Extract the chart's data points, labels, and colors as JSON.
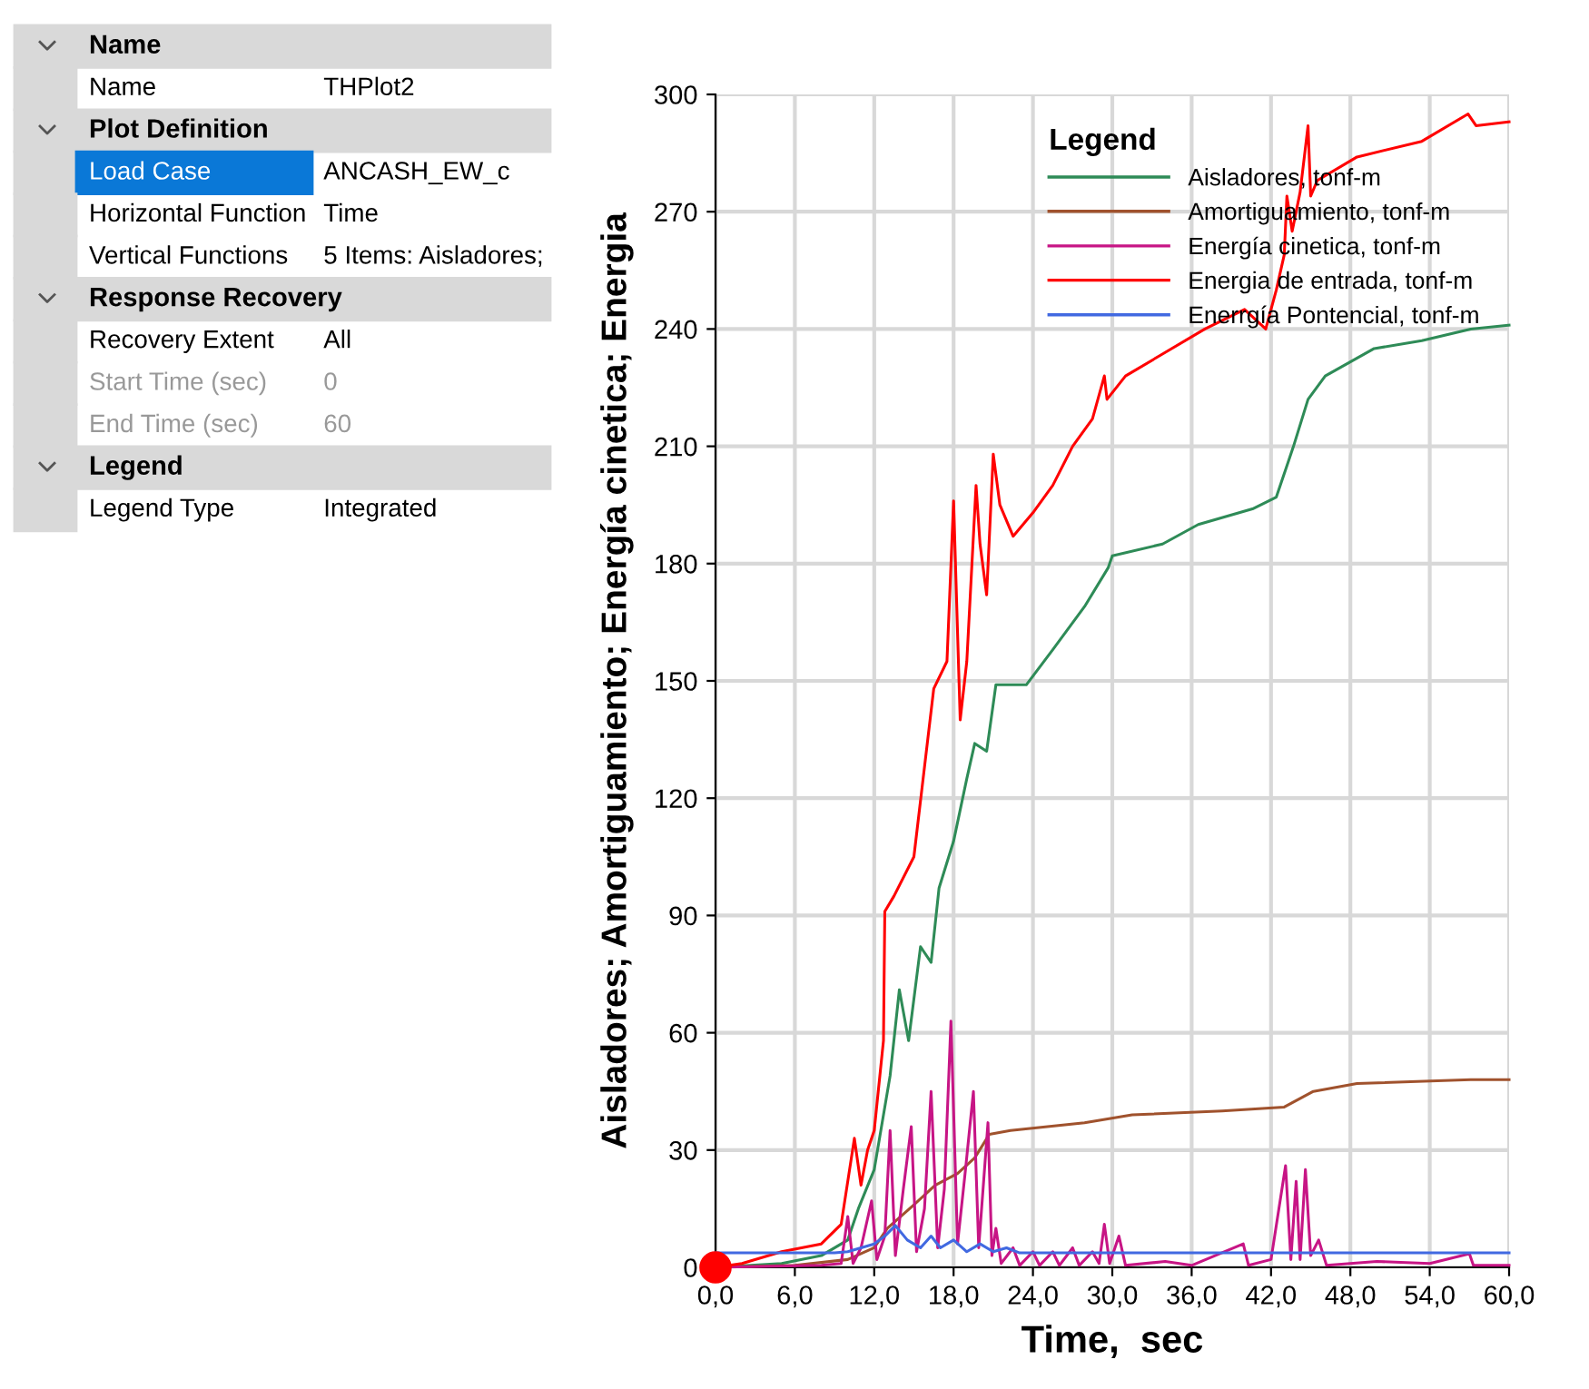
{
  "chart_data": {
    "type": "line",
    "xlabel": "Time,  sec",
    "ylabel": "Aisladores; Amortiguamiento; Energía cinetica; Energia",
    "legend_title": "Legend",
    "legend": "top right",
    "grid": true,
    "xlim": [
      0,
      60
    ],
    "ylim": [
      0,
      300
    ],
    "xticks": [
      {
        "value": 0,
        "label": "0,0"
      },
      {
        "value": 6,
        "label": "6,0"
      },
      {
        "value": 12,
        "label": "12,0"
      },
      {
        "value": 18,
        "label": "18,0"
      },
      {
        "value": 24,
        "label": "24,0"
      },
      {
        "value": 30,
        "label": "30,0"
      },
      {
        "value": 36,
        "label": "36,0"
      },
      {
        "value": 42,
        "label": "42,0"
      },
      {
        "value": 48,
        "label": "48,0"
      },
      {
        "value": 54,
        "label": "54,0"
      },
      {
        "value": 60,
        "label": "60,0"
      }
    ],
    "yticks": [
      0,
      30,
      60,
      90,
      120,
      150,
      180,
      210,
      240,
      270,
      300
    ],
    "series": [
      {
        "name": "Aisladores, tonf-m",
        "color": "#2e8b57",
        "x": [
          0,
          5,
          8,
          10,
          10.8,
          12,
          13.2,
          13.9,
          14.6,
          15.5,
          16.3,
          16.9,
          18,
          19,
          19.6,
          20.5,
          21.2,
          23.5,
          25.5,
          27.9,
          29.7,
          30,
          33.8,
          36.5,
          40.6,
          42.4,
          43.7,
          44.8,
          46.1,
          49.8,
          53.4,
          57.1,
          60
        ],
        "values": [
          0,
          1,
          3,
          7,
          15,
          25,
          49,
          71,
          58,
          82,
          78,
          97,
          109,
          125,
          134,
          132,
          149,
          149,
          158,
          169,
          179,
          182,
          185,
          190,
          194,
          197,
          210,
          222,
          228,
          235,
          237,
          240,
          241
        ]
      },
      {
        "name": "Amortiguamiento, tonf-m",
        "color": "#a0522d",
        "x": [
          0,
          6,
          10,
          12,
          13,
          15,
          16.6,
          18.3,
          19.6,
          20.7,
          22.3,
          27.9,
          31.5,
          38.3,
          43,
          45.2,
          48.5,
          57.1,
          60
        ],
        "values": [
          0,
          0.5,
          2,
          5,
          10,
          16,
          21,
          24,
          28,
          34,
          35,
          37,
          39,
          40,
          41,
          45,
          47,
          48,
          48
        ]
      },
      {
        "name": "Energía cinetica, tonf-m",
        "color": "#c71585",
        "x": [
          0,
          8,
          9.5,
          10,
          10.4,
          11,
          11.8,
          12.2,
          12.8,
          13.2,
          13.6,
          14.2,
          14.8,
          15.2,
          15.8,
          16.3,
          16.8,
          17.3,
          17.8,
          18.3,
          18.9,
          19.5,
          19.9,
          20.6,
          20.9,
          21.2,
          21.6,
          22.5,
          23,
          24,
          24.5,
          25.5,
          26,
          27,
          27.5,
          28.5,
          29,
          29.4,
          29.8,
          30.5,
          31,
          34,
          36,
          39.9,
          40.3,
          42,
          43.1,
          43.5,
          43.9,
          44.2,
          44.6,
          45,
          45.6,
          46.2,
          50,
          54,
          57,
          57.3,
          60
        ],
        "values": [
          0,
          0.5,
          1,
          13,
          1,
          5,
          17,
          2,
          8,
          35,
          3,
          20,
          36,
          4,
          15,
          45,
          5,
          20,
          63,
          6,
          25,
          45,
          5,
          37,
          3,
          10,
          1,
          5,
          0.5,
          4,
          0.5,
          4,
          0.5,
          5,
          0.5,
          4,
          1,
          11,
          1,
          8,
          0.5,
          1.5,
          0.5,
          6,
          0.5,
          2,
          26,
          2,
          22,
          2,
          25,
          3,
          7,
          0.5,
          1.5,
          1,
          3.5,
          0.5,
          0.5
        ]
      },
      {
        "name": "Energia de entrada, tonf-m",
        "color": "#ff0000",
        "x": [
          0,
          2,
          5,
          8,
          9.5,
          10.5,
          11,
          11.5,
          12,
          12.7,
          12.8,
          13.5,
          15,
          16.5,
          17.5,
          18,
          18.5,
          19,
          19.7,
          20,
          20.5,
          21,
          21.5,
          22.5,
          24,
          25.5,
          27,
          28.5,
          29.4,
          29.6,
          31,
          33.5,
          37,
          40,
          41.6,
          42.4,
          43,
          43.2,
          43.6,
          44.2,
          44.8,
          45,
          45.5,
          48.5,
          53.4,
          56.9,
          57.5,
          60
        ],
        "values": [
          0,
          1,
          4,
          6,
          11,
          33,
          21,
          30,
          35,
          58,
          91,
          95,
          105,
          148,
          155,
          196,
          140,
          155,
          200,
          185,
          172,
          208,
          195,
          187,
          193,
          200,
          210,
          217,
          228,
          222,
          228,
          233,
          240,
          245,
          240,
          250,
          259,
          274,
          265,
          275,
          292,
          274,
          278,
          284,
          288,
          295,
          292,
          293
        ]
      },
      {
        "name": "Enerrgía Pontencial, tonf-m",
        "color": "#4169e1",
        "x": [
          0,
          9,
          10,
          11,
          12,
          12.8,
          13.6,
          14.5,
          15.5,
          16.3,
          17,
          18,
          19,
          20,
          21,
          22,
          23,
          60
        ],
        "values": [
          3.7,
          3.7,
          4,
          5,
          6,
          8,
          10.7,
          7,
          5,
          8,
          5,
          7,
          4,
          6,
          4,
          5,
          3.7,
          3.7
        ]
      },
      {
        "type": "scatter",
        "color": "#ff0000",
        "marker": "circle",
        "x": [
          0
        ],
        "values": [
          0
        ]
      }
    ],
    "annotations": [
      "Name",
      "Name",
      "THPlot2",
      "Plot Definition",
      "Load Case",
      "ANCASH_EW_c",
      "Horizontal Function",
      "Time",
      "Vertical Functions",
      "5 Items: Aisladores;",
      "Response Recovery",
      "Recovery Extent",
      "All",
      "Start Time (sec)",
      "0",
      "End Time (sec)",
      "60",
      "Legend",
      "Legend Type",
      "Integrated"
    ]
  }
}
